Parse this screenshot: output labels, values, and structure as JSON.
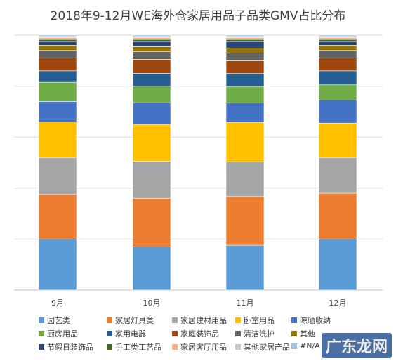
{
  "chart_data": {
    "type": "bar",
    "stacked": "percent",
    "title": "2018年9-12月WE海外仓家居用品子品类GMV占比分布",
    "categories": [
      "9月",
      "10月",
      "11月",
      "12月"
    ],
    "ylim": [
      0,
      100
    ],
    "grid": true,
    "legend_position": "bottom",
    "series": [
      {
        "name": "园艺类",
        "color": "#5B9BD5",
        "values": [
          20,
          17,
          17.5,
          20
        ]
      },
      {
        "name": "家居灯具类",
        "color": "#ED7D31",
        "values": [
          17.5,
          19,
          19,
          18
        ]
      },
      {
        "name": "家居建材用品",
        "color": "#A5A5A5",
        "values": [
          14.5,
          14.5,
          13.5,
          14
        ]
      },
      {
        "name": "卧室用品",
        "color": "#FFC000",
        "values": [
          14,
          14.5,
          15.5,
          13.5
        ]
      },
      {
        "name": "晾晒收纳",
        "color": "#4472C4",
        "values": [
          8,
          8.5,
          7.5,
          9
        ]
      },
      {
        "name": "厨房用品",
        "color": "#70AD47",
        "values": [
          7.5,
          6.5,
          6.5,
          6
        ]
      },
      {
        "name": "家用电器",
        "color": "#255E91",
        "values": [
          4.5,
          5,
          5,
          5.5
        ]
      },
      {
        "name": "家庭装饰品",
        "color": "#9E480E",
        "values": [
          5,
          5.5,
          5,
          5
        ]
      },
      {
        "name": "清洁洗护",
        "color": "#636363",
        "values": [
          3,
          3,
          3,
          3
        ]
      },
      {
        "name": "其他",
        "color": "#997300",
        "values": [
          2,
          2,
          2,
          2
        ]
      },
      {
        "name": "节假日装饰品",
        "color": "#264478",
        "values": [
          1.5,
          2,
          2.5,
          1.5
        ]
      },
      {
        "name": "手工类工艺品",
        "color": "#43682B",
        "values": [
          0.8,
          0.8,
          0.8,
          0.8
        ]
      },
      {
        "name": "家居客厅用品",
        "color": "#F4B183",
        "values": [
          0.7,
          0.7,
          0.7,
          0.7
        ]
      },
      {
        "name": "其他家居产品",
        "color": "#C9C9C9",
        "values": [
          0.5,
          0.5,
          0.5,
          0.5
        ]
      },
      {
        "name": "#N/A",
        "color": "#9DC3E6",
        "values": [
          0.5,
          0.5,
          0.5,
          0.5
        ]
      }
    ]
  },
  "watermark": "广东龙网"
}
